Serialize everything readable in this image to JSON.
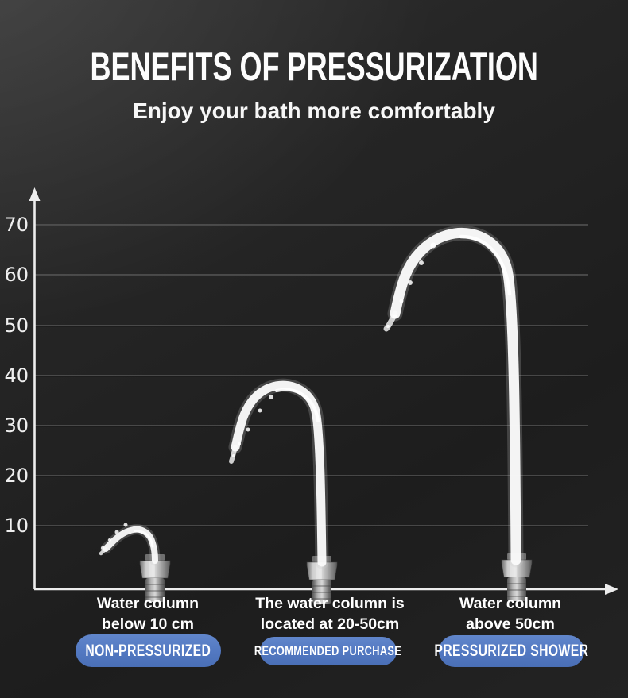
{
  "header": {
    "title": "BENEFITS OF PRESSURIZATION",
    "subtitle": "Enjoy your bath more comfortably"
  },
  "chart_data": {
    "type": "bar",
    "title": "BENEFITS OF PRESSURIZATION",
    "subtitle": "Enjoy your bath more comfortably",
    "categories": [
      "NON-PRESSURIZED",
      "RECOMMENDED PURCHASE",
      "PRESSURIZED SHOWER"
    ],
    "values": [
      9,
      38,
      68
    ],
    "unit": "cm",
    "xlabel": "",
    "ylabel": "",
    "ylim": [
      0,
      75
    ],
    "yticks": [
      70,
      60,
      50,
      40,
      30,
      20,
      10
    ],
    "grid": true,
    "legend": false,
    "bar_style": "water-jet-photo",
    "annotations": [
      "Water column below 10 cm",
      "The water column is located at 20-50cm",
      "Water column above 50cm"
    ]
  },
  "columns": [
    {
      "line1": "Water column",
      "line2": "below 10 cm",
      "badge": "NON-PRESSURIZED",
      "value_cm": 9
    },
    {
      "line1": "The water column is",
      "line2": "located at 20-50cm",
      "badge": "RECOMMENDED PURCHASE",
      "value_cm": 38
    },
    {
      "line1": "Water column",
      "line2": "above 50cm",
      "badge": "PRESSURIZED SHOWER",
      "value_cm": 68
    }
  ],
  "colors": {
    "background": "#232323",
    "title_text": "#fdfdfd",
    "axis": "#ededed",
    "gridline": "#616161",
    "tick_text": "#efefef",
    "label_text": "#ffffff",
    "badge_background": "#5278c1",
    "badge_text": "#ffffff",
    "water": "#fafafa",
    "metal": "#b9b9b9"
  }
}
